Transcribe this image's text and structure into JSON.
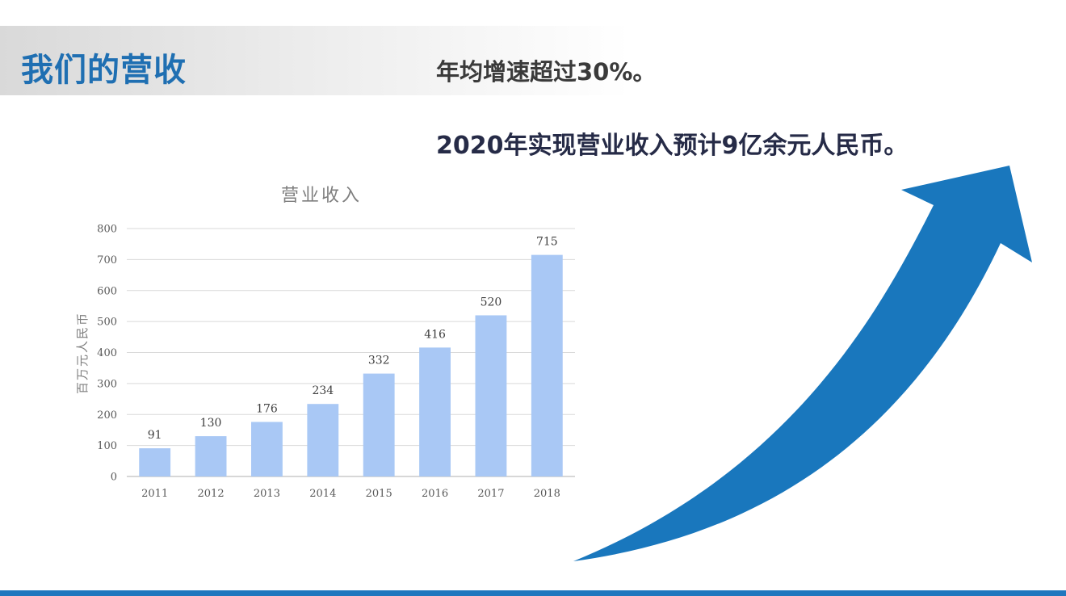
{
  "slide": {
    "title": "我们的营收",
    "headline_growth": "年均增速超过30%。",
    "headline_forecast": "2020年实现营业收入预计9亿余元人民币。"
  },
  "colors": {
    "title_blue": "#1f6fb2",
    "arrow_blue": "#1977bd",
    "bar_fill": "#a9c8f5",
    "accent_line": "#1f77be"
  },
  "icons": {
    "growth_arrow": "upward-curved-arrow-icon"
  },
  "chart_data": {
    "type": "bar",
    "title": "营业收入",
    "ylabel": "百万元人民币",
    "xlabel": "",
    "categories": [
      "2011",
      "2012",
      "2013",
      "2014",
      "2015",
      "2016",
      "2017",
      "2018"
    ],
    "values": [
      91,
      130,
      176,
      234,
      332,
      416,
      520,
      715
    ],
    "ylim": [
      0,
      800
    ],
    "yticks": [
      0,
      100,
      200,
      300,
      400,
      500,
      600,
      700,
      800
    ],
    "data_labels": true,
    "grid": true,
    "legend": "none"
  }
}
